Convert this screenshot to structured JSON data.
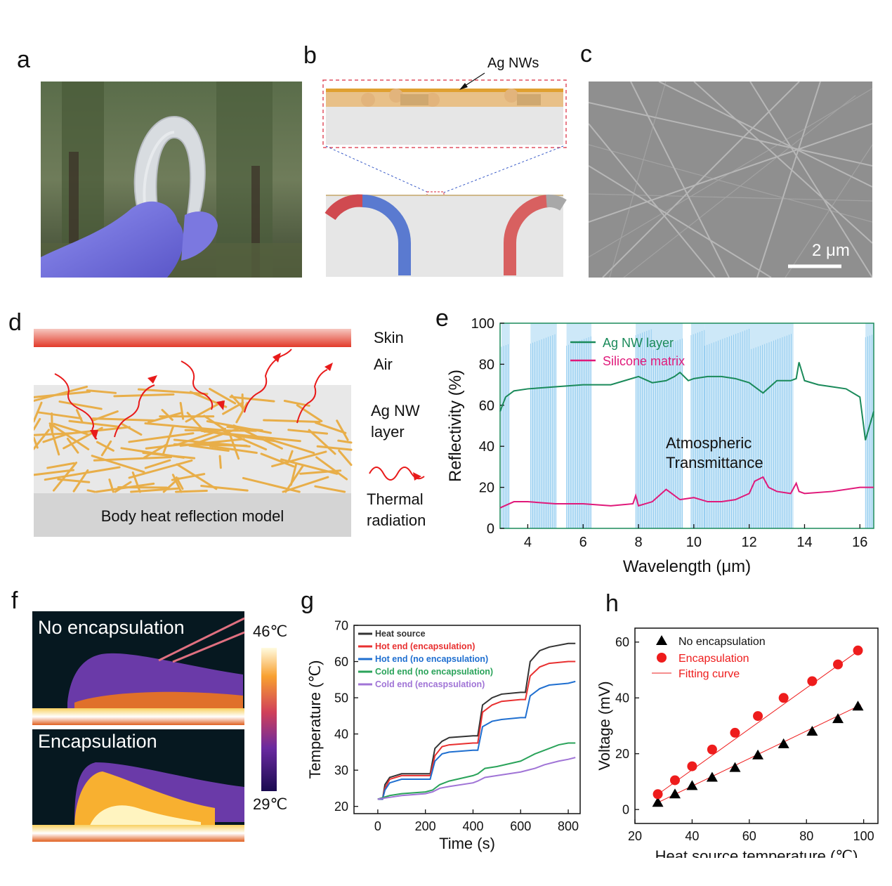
{
  "panel_labels": {
    "a": "a",
    "b": "b",
    "c": "c",
    "d": "d",
    "e": "e",
    "f": "f",
    "g": "g",
    "h": "h"
  },
  "panel_b": {
    "callout": "Ag NWs"
  },
  "panel_c": {
    "scale_bar": "2 μm"
  },
  "panel_d": {
    "skin": "Skin",
    "air": "Air",
    "layer_line1": "Ag NW",
    "layer_line2": "layer",
    "base": "Body heat reflection model",
    "thermal_line1": "Thermal",
    "thermal_line2": "radiation"
  },
  "panel_e": {
    "chart_data": {
      "type": "line",
      "xlabel": "Wavelength (μm)",
      "ylabel": "Reflectivity (%)",
      "xlim": [
        3,
        16.5
      ],
      "ylim": [
        0,
        100
      ],
      "xticks": [
        4,
        6,
        8,
        10,
        12,
        14,
        16
      ],
      "yticks": [
        0,
        20,
        40,
        60,
        80,
        100
      ],
      "annotation_line1": "Atmospheric",
      "annotation_line2": "Transmittance",
      "series": [
        {
          "name": "Ag NW layer",
          "color": "#1a8a5a",
          "x": [
            3,
            3.2,
            3.5,
            4,
            5,
            6,
            7,
            7.5,
            8,
            8.5,
            9,
            9.3,
            9.5,
            9.8,
            10,
            10.5,
            11,
            11.5,
            12,
            12.5,
            13,
            13.5,
            13.7,
            13.8,
            14,
            14.5,
            15,
            15.5,
            16,
            16.2,
            16.5
          ],
          "y": [
            57,
            64,
            67,
            68,
            69,
            70,
            70,
            72,
            74,
            71,
            72,
            74,
            76,
            72,
            73,
            74,
            74,
            73,
            71,
            66,
            72,
            72,
            73,
            81,
            72,
            70,
            69,
            68,
            64,
            43,
            57
          ]
        },
        {
          "name": "Silicone matrix",
          "color": "#e0197a",
          "x": [
            3,
            3.5,
            4,
            5,
            6,
            7,
            7.8,
            7.9,
            8,
            8.5,
            9,
            9.2,
            9.5,
            10,
            10.5,
            11,
            11.5,
            12,
            12.2,
            12.5,
            12.7,
            13,
            13.5,
            13.7,
            13.8,
            14,
            15,
            16,
            16.5
          ],
          "y": [
            10,
            13,
            13,
            12,
            12,
            11,
            12,
            16,
            11,
            13,
            19,
            17,
            14,
            15,
            13,
            13,
            14,
            17,
            23,
            25,
            20,
            18,
            17,
            22,
            18,
            17,
            18,
            20,
            20
          ]
        }
      ],
      "transmittance_bands": [
        [
          3.05,
          3.35
        ],
        [
          4.1,
          5.05
        ],
        [
          5.4,
          6.3
        ],
        [
          7.9,
          9.6
        ],
        [
          9.9,
          10.4
        ],
        [
          10.4,
          13.6
        ],
        [
          16.2,
          16.5
        ]
      ]
    }
  },
  "panel_f": {
    "top_label": "No encapsulation",
    "bottom_label": "Encapsulation",
    "scale_max": "46℃",
    "scale_min": "29℃"
  },
  "panel_g": {
    "chart_data": {
      "type": "line",
      "xlabel": "Time (s)",
      "ylabel": "Temperature (℃)",
      "xlim": [
        -100,
        850
      ],
      "ylim": [
        18,
        70
      ],
      "xticks": [
        0,
        200,
        400,
        600,
        800
      ],
      "yticks": [
        20,
        30,
        40,
        50,
        60,
        70
      ],
      "series": [
        {
          "name": "Heat source",
          "color": "#333333",
          "x": [
            0,
            20,
            30,
            50,
            100,
            200,
            220,
            240,
            270,
            300,
            400,
            420,
            440,
            480,
            520,
            600,
            620,
            640,
            680,
            720,
            800,
            830
          ],
          "y": [
            22,
            22,
            26,
            28,
            29,
            29,
            29,
            36,
            38,
            39,
            39.5,
            39.5,
            48,
            50,
            51,
            51.5,
            51.5,
            60,
            63,
            64,
            65,
            65
          ]
        },
        {
          "name": "Hot end (encapsulation)",
          "color": "#e83030",
          "x": [
            0,
            20,
            30,
            50,
            100,
            200,
            220,
            240,
            270,
            300,
            400,
            420,
            440,
            480,
            520,
            600,
            620,
            640,
            680,
            720,
            800,
            830
          ],
          "y": [
            22,
            22,
            25,
            27.5,
            28.5,
            28.5,
            28.5,
            34,
            36.5,
            37,
            37.5,
            37.5,
            46,
            48,
            49,
            49.5,
            49.5,
            56,
            58.5,
            59.5,
            60,
            60
          ]
        },
        {
          "name": "Hot end (no encapsulation)",
          "color": "#1f6fd0",
          "x": [
            0,
            20,
            30,
            50,
            100,
            200,
            220,
            240,
            270,
            300,
            400,
            420,
            440,
            480,
            520,
            600,
            620,
            640,
            680,
            720,
            800,
            830
          ],
          "y": [
            22,
            22,
            24.5,
            26.5,
            27.5,
            27.5,
            27.5,
            32.5,
            34.5,
            35,
            35.5,
            35.5,
            42,
            43.5,
            44,
            44.5,
            44.5,
            50.5,
            52.5,
            53.5,
            54,
            54.5
          ]
        },
        {
          "name": "Cold end (no encapsulation)",
          "color": "#2aa35a",
          "x": [
            0,
            50,
            100,
            200,
            230,
            260,
            300,
            400,
            420,
            450,
            500,
            600,
            630,
            660,
            700,
            760,
            800,
            830
          ],
          "y": [
            22,
            23,
            23.5,
            24,
            24.5,
            26,
            27,
            28.5,
            29,
            30.5,
            31,
            32.5,
            33.5,
            34.5,
            35.5,
            37,
            37.5,
            37.5
          ]
        },
        {
          "name": "Cold end (encaspsulation)",
          "color": "#a074d6",
          "x": [
            0,
            50,
            100,
            200,
            230,
            260,
            300,
            400,
            420,
            450,
            500,
            600,
            630,
            660,
            700,
            760,
            800,
            830
          ],
          "y": [
            22,
            22.5,
            23,
            23.5,
            24,
            25,
            25.5,
            26.5,
            27,
            28,
            28.5,
            29.5,
            30,
            30.5,
            31.5,
            32.5,
            33,
            33.5
          ]
        }
      ]
    }
  },
  "panel_h": {
    "chart_data": {
      "type": "scatter",
      "xlabel": "Heat source temperature (℃)",
      "ylabel": "Voltage (mV)",
      "xlim": [
        20,
        105
      ],
      "ylim": [
        -5,
        65
      ],
      "xticks": [
        20,
        40,
        60,
        80,
        100
      ],
      "yticks": [
        0,
        20,
        40,
        60
      ],
      "series": [
        {
          "name": "No encapsulation",
          "color": "#000000",
          "marker": "triangle",
          "x": [
            28,
            34,
            40,
            47,
            55,
            63,
            72,
            82,
            91,
            98
          ],
          "y": [
            2.5,
            5.5,
            8.5,
            11.5,
            15,
            19.5,
            23.5,
            28,
            32.5,
            37
          ]
        },
        {
          "name": "Encapsulation",
          "color": "#ee1c1c",
          "marker": "circle",
          "x": [
            28,
            34,
            40,
            47,
            55,
            63,
            72,
            82,
            91,
            98
          ],
          "y": [
            5.5,
            10.5,
            15.5,
            21.5,
            27.5,
            33.5,
            40,
            46,
            52,
            57
          ]
        },
        {
          "name": "Fitting curve",
          "color": "#ee1c1c",
          "marker": "line",
          "fits": [
            [
              [
                27,
                2
              ],
              [
                99,
                37.5
              ]
            ],
            [
              [
                27,
                4.7
              ],
              [
                99,
                57.5
              ]
            ]
          ]
        }
      ]
    }
  }
}
